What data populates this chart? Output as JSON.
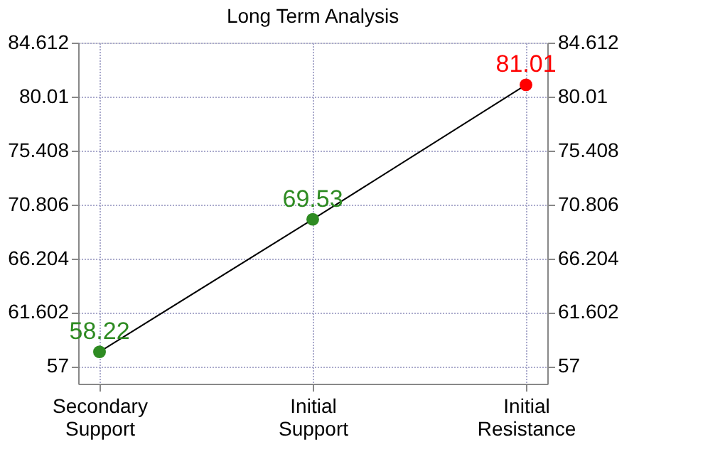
{
  "chart_data": {
    "type": "line",
    "title": "Long Term Analysis",
    "categories": [
      "Secondary Support",
      "Initial Support",
      "Initial Resistance"
    ],
    "series": [
      {
        "color": "#000000",
        "colors": [
          "#2e8b22",
          "#2e8b22",
          "#ff0000"
        ],
        "values": [
          58.22,
          69.53,
          81.01
        ]
      }
    ],
    "ylim": [
      55.5,
      84.612
    ],
    "yticks": [
      57,
      61.602,
      66.204,
      70.806,
      75.408,
      80.01,
      84.612
    ],
    "y2lim": [
      55.5,
      84.612
    ],
    "y2ticks": [
      57,
      61.602,
      66.204,
      70.806,
      75.408,
      80.01,
      84.612
    ],
    "data_labels": true,
    "grid": true,
    "marker": "circle",
    "line_style": "solid"
  }
}
